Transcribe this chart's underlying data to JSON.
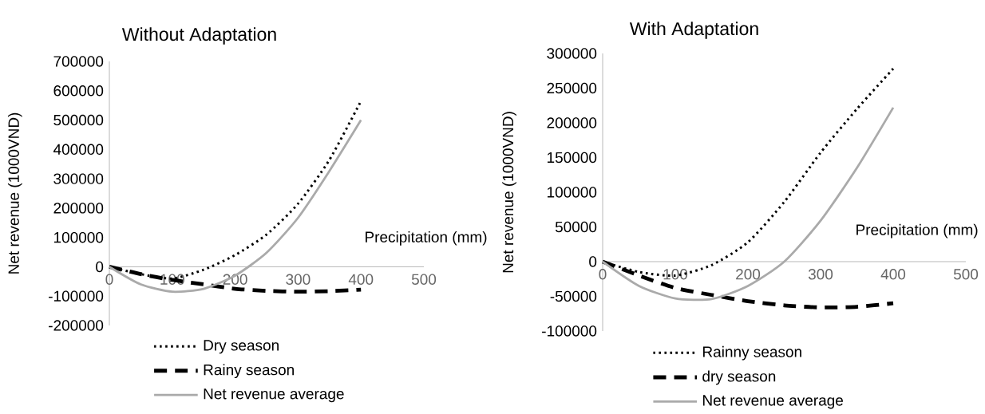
{
  "chart_data": [
    {
      "type": "line",
      "title": "Without Adaptation",
      "xlabel": "Precipitation (mm)",
      "ylabel": "Net revenue (1000VND)",
      "x": [
        0,
        50,
        100,
        150,
        200,
        250,
        300,
        350,
        400
      ],
      "series": [
        {
          "name": "Dry season",
          "color": "#000000",
          "line_style": "dotted",
          "values": [
            0,
            -25000,
            -40000,
            -10000,
            40000,
            110000,
            215000,
            365000,
            565000
          ]
        },
        {
          "name": "Rainy season",
          "color": "#000000",
          "line_style": "dashed",
          "values": [
            0,
            -25000,
            -45000,
            -60000,
            -75000,
            -82000,
            -85000,
            -83000,
            -78000
          ]
        },
        {
          "name": "Net revenue average",
          "color": "#aaaaaa",
          "line_style": "solid",
          "values": [
            0,
            -60000,
            -85000,
            -75000,
            -30000,
            48000,
            167000,
            327000,
            500000
          ]
        }
      ],
      "xlim": [
        0,
        500
      ],
      "xticks": [
        0,
        100,
        200,
        300,
        400,
        500
      ],
      "ylim": [
        -200000,
        700000
      ],
      "yticks": [
        -200000,
        -100000,
        0,
        100000,
        200000,
        300000,
        400000,
        500000,
        600000,
        700000
      ],
      "legend": "bottom",
      "marker": "none"
    },
    {
      "type": "line",
      "title": "With Adaptation",
      "xlabel": "Precipitation (mm)",
      "ylabel": "Net revenue (1000VND)",
      "x": [
        0,
        50,
        100,
        150,
        200,
        250,
        300,
        350,
        400
      ],
      "series": [
        {
          "name": "Rainny season",
          "color": "#000000",
          "line_style": "dotted",
          "values": [
            0,
            -15000,
            -20000,
            -5000,
            28000,
            86000,
            157000,
            220000,
            278000
          ]
        },
        {
          "name": "dry season",
          "color": "#000000",
          "line_style": "dashed",
          "values": [
            0,
            -20000,
            -38000,
            -48000,
            -57000,
            -63000,
            -66000,
            -65000,
            -60000
          ]
        },
        {
          "name": "Net revenue average",
          "color": "#aaaaaa",
          "line_style": "solid",
          "values": [
            0,
            -35000,
            -53000,
            -54000,
            -35000,
            0,
            59000,
            135000,
            222000
          ]
        }
      ],
      "xlim": [
        0,
        500
      ],
      "xticks": [
        0,
        100,
        200,
        300,
        400,
        500
      ],
      "ylim": [
        -100000,
        300000
      ],
      "yticks": [
        -100000,
        -50000,
        0,
        50000,
        100000,
        150000,
        200000,
        250000,
        300000
      ],
      "legend": "bottom",
      "marker": "none"
    }
  ]
}
